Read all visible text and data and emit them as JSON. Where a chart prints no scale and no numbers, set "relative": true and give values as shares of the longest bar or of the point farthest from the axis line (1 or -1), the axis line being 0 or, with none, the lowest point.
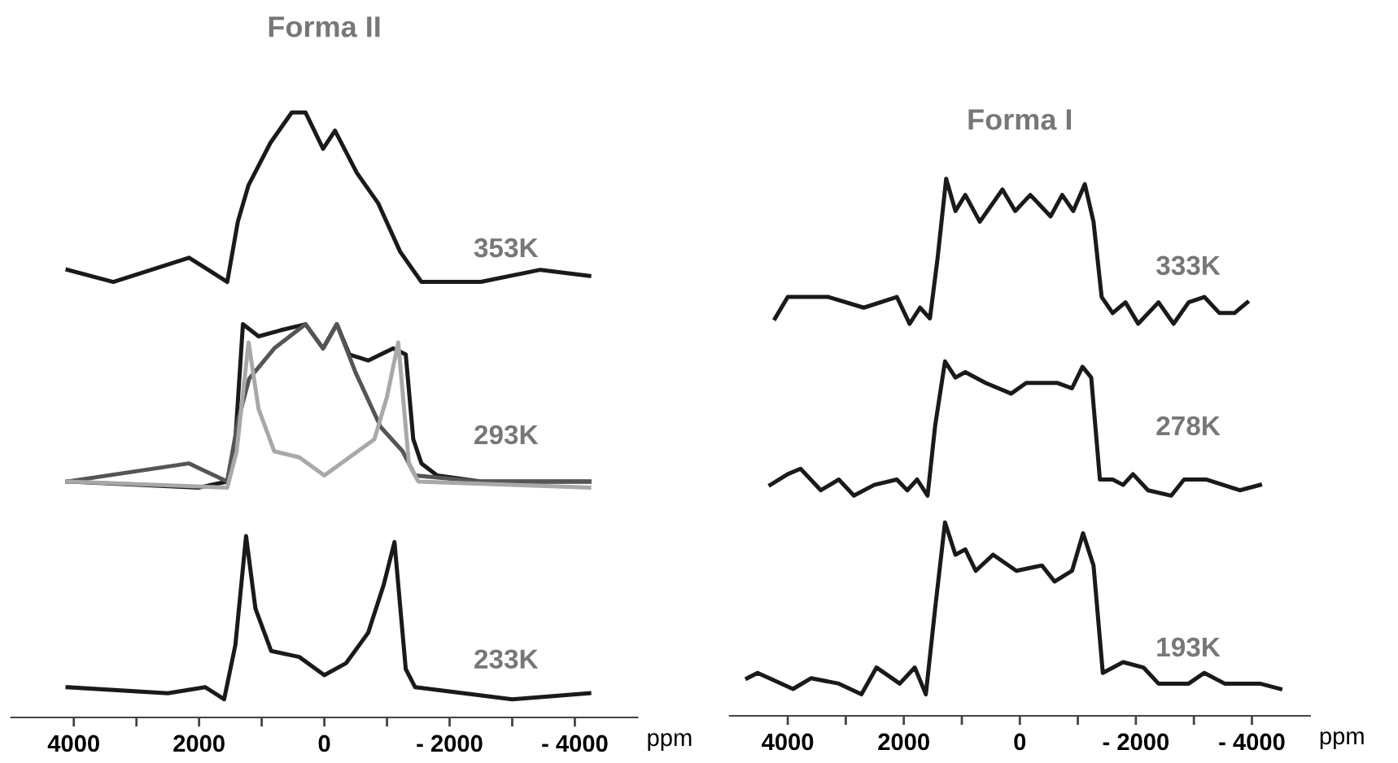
{
  "chart_data": [
    {
      "type": "line",
      "title": "Forma II",
      "relative": true,
      "xlabel": "ppm",
      "xlim": [
        5000,
        -5000
      ],
      "xticks": [
        4000,
        {
          "value": 3000,
          "label": null
        },
        2000,
        {
          "value": 1000,
          "label": null
        },
        0,
        {
          "value": -1000,
          "label": null
        },
        {
          "value": -2000,
          "label": "- 2000"
        },
        {
          "value": -3000,
          "label": null
        },
        {
          "value": -4000,
          "label": "- 4000"
        }
      ],
      "tick_labels": "x",
      "grid": false,
      "legend": false,
      "series": [
        {
          "color": "#1a1a1a",
          "x": [
            4100,
            3370,
            2160,
            1550,
            1380,
            1210,
            860,
            520,
            300,
            20,
            -170,
            -520,
            -860,
            -1210,
            -1550,
            -2500,
            -3450,
            -4230
          ],
          "values": [
            0.74,
            0.72,
            0.76,
            0.72,
            0.82,
            0.88,
            0.95,
            1.0,
            1.0,
            0.94,
            0.97,
            0.9,
            0.85,
            0.77,
            0.72,
            0.72,
            0.74,
            0.73
          ]
        },
        {
          "color": "#1a1a1a",
          "x": [
            4100,
            2000,
            1550,
            1420,
            1300,
            1050,
            700,
            300,
            20,
            -200,
            -400,
            -700,
            -1100,
            -1300,
            -1420,
            -1550,
            -1800,
            -2500,
            -4230
          ],
          "values": [
            0.39,
            0.38,
            0.39,
            0.46,
            0.65,
            0.63,
            0.64,
            0.65,
            0.61,
            0.65,
            0.6,
            0.59,
            0.61,
            0.6,
            0.46,
            0.42,
            0.4,
            0.39,
            0.39
          ]
        },
        {
          "color": "#555555",
          "x": [
            4100,
            2160,
            1550,
            1380,
            1200,
            800,
            300,
            20,
            -200,
            -500,
            -900,
            -1250,
            -1450,
            -2500,
            -4230
          ],
          "values": [
            0.39,
            0.42,
            0.39,
            0.49,
            0.56,
            0.61,
            0.65,
            0.61,
            0.65,
            0.57,
            0.48,
            0.44,
            0.4,
            0.39,
            0.39
          ]
        },
        {
          "color": "#a8a8a8",
          "x": [
            4100,
            1550,
            1400,
            1210,
            1050,
            800,
            400,
            0,
            -400,
            -800,
            -1000,
            -1180,
            -1350,
            -1500,
            -4230
          ],
          "values": [
            0.39,
            0.38,
            0.44,
            0.62,
            0.51,
            0.44,
            0.43,
            0.4,
            0.43,
            0.46,
            0.53,
            0.62,
            0.42,
            0.39,
            0.38
          ]
        },
        {
          "color": "#1a1a1a",
          "x": [
            4100,
            2500,
            1900,
            1600,
            1420,
            1250,
            1100,
            850,
            400,
            0,
            -350,
            -700,
            -950,
            -1120,
            -1300,
            -1450,
            -3000,
            -4230
          ],
          "values": [
            0.05,
            0.04,
            0.05,
            0.03,
            0.12,
            0.3,
            0.18,
            0.11,
            0.1,
            0.07,
            0.09,
            0.14,
            0.22,
            0.29,
            0.08,
            0.05,
            0.03,
            0.04
          ]
        }
      ],
      "annotations": [
        "353K",
        "293K",
        "233K"
      ]
    },
    {
      "type": "line",
      "title": "Forma I",
      "relative": true,
      "xlabel": "ppm",
      "xlim": [
        5000,
        -5000
      ],
      "xticks": [
        4000,
        {
          "value": 3000,
          "label": null
        },
        2000,
        {
          "value": 1000,
          "label": null
        },
        0,
        {
          "value": -1000,
          "label": null
        },
        {
          "value": -2000,
          "label": "- 2000"
        },
        {
          "value": -3000,
          "label": null
        },
        {
          "value": -4000,
          "label": "- 4000"
        }
      ],
      "tick_labels": "x",
      "grid": false,
      "legend": false,
      "series": [
        {
          "color": "#1a1a1a",
          "x": [
            4220,
            4000,
            3300,
            2690,
            2120,
            1900,
            1720,
            1550,
            1420,
            1270,
            1110,
            940,
            690,
            300,
            80,
            -180,
            -530,
            -730,
            -920,
            -1120,
            -1270,
            -1410,
            -1600,
            -1820,
            -2040,
            -2390,
            -2650,
            -2910,
            -3180,
            -3440,
            -3700,
            -3920
          ],
          "values": [
            0.74,
            0.78,
            0.78,
            0.76,
            0.78,
            0.73,
            0.76,
            0.74,
            0.85,
            1.0,
            0.94,
            0.97,
            0.92,
            0.98,
            0.94,
            0.97,
            0.93,
            0.97,
            0.94,
            0.99,
            0.92,
            0.78,
            0.75,
            0.77,
            0.73,
            0.77,
            0.73,
            0.77,
            0.78,
            0.75,
            0.75,
            0.77
          ]
        },
        {
          "color": "#1a1a1a",
          "x": [
            4300,
            4000,
            3780,
            3430,
            3120,
            2860,
            2510,
            2120,
            1940,
            1770,
            1590,
            1460,
            1290,
            1110,
            940,
            590,
            150,
            -110,
            -640,
            -900,
            -1080,
            -1230,
            -1380,
            -1600,
            -1780,
            -1950,
            -2210,
            -2610,
            -2830,
            -3220,
            -3790,
            -4140
          ],
          "values": [
            0.43,
            0.45,
            0.46,
            0.42,
            0.44,
            0.41,
            0.43,
            0.44,
            0.42,
            0.44,
            0.41,
            0.54,
            0.66,
            0.63,
            0.64,
            0.62,
            0.6,
            0.62,
            0.62,
            0.61,
            0.65,
            0.63,
            0.44,
            0.44,
            0.43,
            0.45,
            0.42,
            0.41,
            0.44,
            0.44,
            0.42,
            0.43
          ]
        },
        {
          "color": "#1a1a1a",
          "x": [
            4700,
            4520,
            3910,
            3600,
            3120,
            2730,
            2470,
            2070,
            1810,
            1620,
            1460,
            1290,
            1110,
            940,
            760,
            460,
            60,
            -380,
            -600,
            -900,
            -1090,
            -1270,
            -1430,
            -1780,
            -2130,
            -2390,
            -2910,
            -3180,
            -3530,
            -4140,
            -4490
          ],
          "values": [
            0.07,
            0.08,
            0.05,
            0.07,
            0.06,
            0.04,
            0.09,
            0.06,
            0.09,
            0.04,
            0.2,
            0.36,
            0.3,
            0.31,
            0.27,
            0.3,
            0.27,
            0.28,
            0.25,
            0.27,
            0.34,
            0.28,
            0.08,
            0.1,
            0.09,
            0.06,
            0.06,
            0.08,
            0.06,
            0.06,
            0.05
          ]
        }
      ],
      "annotations": [
        "333K",
        "278K",
        "193K"
      ]
    }
  ]
}
